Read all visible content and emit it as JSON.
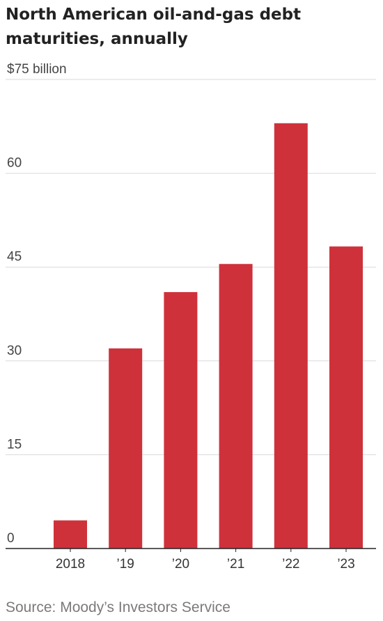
{
  "title": "North American oil-and-gas debt maturities, annually",
  "source": "Source: Moody’s Investors Service",
  "colors": {
    "bar": "#cf313b",
    "grid": "#d9d9d9",
    "axis": "#222222"
  },
  "chart_data": {
    "type": "bar",
    "categories": [
      "2018",
      "’19",
      "’20",
      "’21",
      "’22",
      "’23"
    ],
    "values": [
      4.5,
      32,
      41,
      45.5,
      68,
      48.3
    ],
    "ylim": [
      0,
      75
    ],
    "yticks": [
      0,
      15,
      30,
      45,
      60,
      75
    ],
    "ytick_labels": [
      "0",
      "15",
      "30",
      "45",
      "60",
      "$75 billion"
    ],
    "grid": true
  }
}
